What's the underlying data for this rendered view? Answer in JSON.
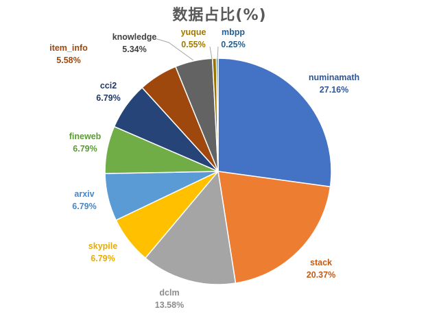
{
  "chart_data": {
    "type": "pie",
    "title": "数据占比(%)",
    "slices": [
      {
        "label": "numinamath",
        "value": 27.16,
        "value_text": "27.16%",
        "color": "#4472C4",
        "label_color": "#2F5597"
      },
      {
        "label": "stack",
        "value": 20.37,
        "value_text": "20.37%",
        "color": "#ED7D31",
        "label_color": "#C55A11"
      },
      {
        "label": "dclm",
        "value": 13.58,
        "value_text": "13.58%",
        "color": "#A5A5A5",
        "label_color": "#8C8C8C"
      },
      {
        "label": "skypile",
        "value": 6.79,
        "value_text": "6.79%",
        "color": "#FFC000",
        "label_color": "#E6AC00"
      },
      {
        "label": "arxiv",
        "value": 6.79,
        "value_text": "6.79%",
        "color": "#5B9BD5",
        "label_color": "#4A86C5"
      },
      {
        "label": "fineweb",
        "value": 6.79,
        "value_text": "6.79%",
        "color": "#70AD47",
        "label_color": "#5B9A35"
      },
      {
        "label": "cci2",
        "value": 6.79,
        "value_text": "6.79%",
        "color": "#264478",
        "label_color": "#1F3864"
      },
      {
        "label": "item_info",
        "value": 5.58,
        "value_text": "5.58%",
        "color": "#9E480E",
        "label_color": "#9E480E"
      },
      {
        "label": "knowledge",
        "value": 5.34,
        "value_text": "5.34%",
        "color": "#636363",
        "label_color": "#404040"
      },
      {
        "label": "yuque",
        "value": 0.55,
        "value_text": "0.55%",
        "color": "#997300",
        "label_color": "#A07800"
      },
      {
        "label": "mbpp",
        "value": 0.25,
        "value_text": "0.25%",
        "color": "#255E91",
        "label_color": "#255E91"
      }
    ]
  }
}
